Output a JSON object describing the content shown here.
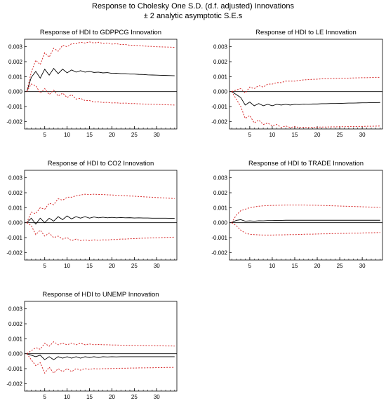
{
  "figure": {
    "title_line1": "Response to Cholesky One S.D. (d.f. adjusted) Innovations",
    "title_line2": "± 2 analytic asymptotic S.E.s"
  },
  "colors": {
    "response": "#000000",
    "band": "#d62728",
    "zero_line": "#000000"
  },
  "chart_data": [
    {
      "type": "line",
      "title": "Response of HDI to GDPPCG Innovation",
      "x": [
        1,
        2,
        3,
        4,
        5,
        6,
        7,
        8,
        9,
        10,
        11,
        12,
        13,
        14,
        15,
        16,
        17,
        18,
        19,
        20,
        21,
        22,
        23,
        24,
        25,
        26,
        27,
        28,
        29,
        30,
        31,
        32,
        33,
        34
      ],
      "xticks": [
        5,
        10,
        15,
        20,
        25,
        30
      ],
      "xlim": [
        0.5,
        34.5
      ],
      "ylim": [
        -0.0025,
        0.0035
      ],
      "yticks": [
        -0.002,
        -0.001,
        0.0,
        0.001,
        0.002,
        0.003
      ],
      "ytick_labels": [
        "-0.002",
        "-0.001",
        "0.000",
        "0.001",
        "0.002",
        "0.003"
      ],
      "series": [
        {
          "role": "response",
          "values": [
            0.0,
            0.00095,
            0.00135,
            0.0009,
            0.0015,
            0.0011,
            0.00155,
            0.0012,
            0.0015,
            0.00125,
            0.00145,
            0.0013,
            0.0014,
            0.0013,
            0.00135,
            0.00128,
            0.0013,
            0.00125,
            0.00127,
            0.00122,
            0.00123,
            0.0012,
            0.0012,
            0.00117,
            0.00117,
            0.00115,
            0.00114,
            0.00112,
            0.00111,
            0.0011,
            0.00109,
            0.00108,
            0.00107,
            0.00106
          ]
        },
        {
          "role": "upper",
          "values": [
            0.0,
            0.0013,
            0.0021,
            0.0018,
            0.0026,
            0.0023,
            0.0029,
            0.0027,
            0.0031,
            0.003,
            0.0032,
            0.0032,
            0.0033,
            0.00325,
            0.00332,
            0.00325,
            0.0033,
            0.00322,
            0.00325,
            0.00318,
            0.0032,
            0.00315,
            0.00315,
            0.0031,
            0.0031,
            0.00308,
            0.00305,
            0.00303,
            0.00302,
            0.003,
            0.00299,
            0.00298,
            0.00297,
            0.00296
          ]
        },
        {
          "role": "lower",
          "values": [
            0.0,
            0.0005,
            0.0004,
            -0.0001,
            0.0002,
            -0.0002,
            0.0001,
            -0.0003,
            -0.0001,
            -0.0004,
            -0.0002,
            -0.0005,
            -0.00045,
            -0.0006,
            -0.0006,
            -0.0007,
            -0.00068,
            -0.00073,
            -0.00072,
            -0.00076,
            -0.00075,
            -0.00078,
            -0.00077,
            -0.0008,
            -0.0008,
            -0.00082,
            -0.00083,
            -0.00084,
            -0.00085,
            -0.00086,
            -0.00087,
            -0.00088,
            -0.00089,
            -0.0009
          ]
        }
      ]
    },
    {
      "type": "line",
      "title": "Response of HDI to LE Innovation",
      "x": [
        1,
        2,
        3,
        4,
        5,
        6,
        7,
        8,
        9,
        10,
        11,
        12,
        13,
        14,
        15,
        16,
        17,
        18,
        19,
        20,
        21,
        22,
        23,
        24,
        25,
        26,
        27,
        28,
        29,
        30,
        31,
        32,
        33,
        34
      ],
      "xticks": [
        5,
        10,
        15,
        20,
        25,
        30
      ],
      "xlim": [
        0.5,
        34.5
      ],
      "ylim": [
        -0.0025,
        0.0035
      ],
      "yticks": [
        -0.002,
        -0.001,
        0.0,
        0.001,
        0.002,
        0.003
      ],
      "ytick_labels": [
        "-0.002",
        "-0.001",
        "0.000",
        "0.001",
        "0.002",
        "0.003"
      ],
      "series": [
        {
          "role": "response",
          "values": [
            0.0,
            -0.0002,
            -0.0004,
            -0.0009,
            -0.0007,
            -0.00095,
            -0.0008,
            -0.00095,
            -0.00085,
            -0.00095,
            -0.00085,
            -0.0009,
            -0.00085,
            -0.0009,
            -0.00085,
            -0.00087,
            -0.00084,
            -0.00085,
            -0.00083,
            -0.00083,
            -0.00081,
            -0.00081,
            -0.0008,
            -0.0008,
            -0.00079,
            -0.00078,
            -0.00077,
            -0.00077,
            -0.00076,
            -0.00075,
            -0.00075,
            -0.00074,
            -0.00074,
            -0.00073
          ]
        },
        {
          "role": "upper",
          "values": [
            0.0,
            0.0001,
            0.0002,
            -0.0001,
            0.0003,
            0.0002,
            0.0004,
            0.0003,
            0.0005,
            0.0005,
            0.0006,
            0.0006,
            0.0007,
            0.0007,
            0.0007,
            0.00075,
            0.00078,
            0.0008,
            0.00082,
            0.00083,
            0.00085,
            0.00086,
            0.00087,
            0.00088,
            0.00089,
            0.0009,
            0.0009,
            0.00091,
            0.00092,
            0.00093,
            0.00093,
            0.00094,
            0.00095,
            0.00095
          ]
        },
        {
          "role": "lower",
          "values": [
            0.0,
            -0.0005,
            -0.001,
            -0.0018,
            -0.0016,
            -0.0021,
            -0.0019,
            -0.0022,
            -0.0021,
            -0.0023,
            -0.0022,
            -0.0024,
            -0.0023,
            -0.0024,
            -0.00235,
            -0.0024,
            -0.00238,
            -0.0024,
            -0.00238,
            -0.00238,
            -0.00237,
            -0.00237,
            -0.00236,
            -0.00236,
            -0.00235,
            -0.00235,
            -0.00234,
            -0.00234,
            -0.00233,
            -0.00233,
            -0.00232,
            -0.00232,
            -0.00231,
            -0.0023
          ]
        }
      ]
    },
    {
      "type": "line",
      "title": "Response of HDI to CO2 Innovation",
      "x": [
        1,
        2,
        3,
        4,
        5,
        6,
        7,
        8,
        9,
        10,
        11,
        12,
        13,
        14,
        15,
        16,
        17,
        18,
        19,
        20,
        21,
        22,
        23,
        24,
        25,
        26,
        27,
        28,
        29,
        30,
        31,
        32,
        33,
        34
      ],
      "xticks": [
        5,
        10,
        15,
        20,
        25,
        30
      ],
      "xlim": [
        0.5,
        34.5
      ],
      "ylim": [
        -0.0025,
        0.0035
      ],
      "yticks": [
        -0.002,
        -0.001,
        0.0,
        0.001,
        0.002,
        0.003
      ],
      "ytick_labels": [
        "-0.002",
        "-0.001",
        "0.000",
        "0.001",
        "0.002",
        "0.003"
      ],
      "series": [
        {
          "role": "response",
          "values": [
            0.0,
            0.0003,
            -0.0001,
            0.0003,
            0.0,
            0.0003,
            0.0001,
            0.0004,
            0.0002,
            0.00045,
            0.00025,
            0.0004,
            0.0003,
            0.0004,
            0.0003,
            0.00038,
            0.00032,
            0.00036,
            0.00032,
            0.00035,
            0.00032,
            0.00034,
            0.00032,
            0.00033,
            0.00031,
            0.00032,
            0.00031,
            0.00031,
            0.0003,
            0.0003,
            0.0003,
            0.0003,
            0.00029,
            0.00029
          ]
        },
        {
          "role": "upper",
          "values": [
            0.0,
            0.0007,
            0.0006,
            0.001,
            0.0009,
            0.0013,
            0.0012,
            0.0016,
            0.0015,
            0.0017,
            0.0017,
            0.0018,
            0.00185,
            0.0019,
            0.00188,
            0.0019,
            0.00188,
            0.00188,
            0.00186,
            0.00185,
            0.00183,
            0.00182,
            0.0018,
            0.00178,
            0.00177,
            0.00175,
            0.00173,
            0.00171,
            0.0017,
            0.00168,
            0.00166,
            0.00165,
            0.00163,
            0.00161
          ]
        },
        {
          "role": "lower",
          "values": [
            0.0,
            -0.0002,
            -0.0008,
            -0.0005,
            -0.0009,
            -0.0007,
            -0.001,
            -0.0009,
            -0.0011,
            -0.001,
            -0.0012,
            -0.0011,
            -0.0012,
            -0.00115,
            -0.0012,
            -0.00115,
            -0.00118,
            -0.00115,
            -0.00116,
            -0.00113,
            -0.00113,
            -0.0011,
            -0.0011,
            -0.00108,
            -0.00107,
            -0.00105,
            -0.00104,
            -0.00103,
            -0.00102,
            -0.00101,
            -0.001,
            -0.00099,
            -0.00098,
            -0.00097
          ]
        }
      ]
    },
    {
      "type": "line",
      "title": "Response of HDI to TRADE Innovation",
      "x": [
        1,
        2,
        3,
        4,
        5,
        6,
        7,
        8,
        9,
        10,
        11,
        12,
        13,
        14,
        15,
        16,
        17,
        18,
        19,
        20,
        21,
        22,
        23,
        24,
        25,
        26,
        27,
        28,
        29,
        30,
        31,
        32,
        33,
        34
      ],
      "xticks": [
        5,
        10,
        15,
        20,
        25,
        30
      ],
      "xlim": [
        0.5,
        34.5
      ],
      "ylim": [
        -0.0025,
        0.0035
      ],
      "yticks": [
        -0.002,
        -0.001,
        0.0,
        0.001,
        0.002,
        0.003
      ],
      "ytick_labels": [
        "-0.002",
        "-0.001",
        "0.000",
        "0.001",
        "0.002",
        "0.003"
      ],
      "series": [
        {
          "role": "response",
          "values": [
            0.0,
            0.00015,
            0.0002,
            0.0001,
            0.00012,
            0.0001,
            0.00013,
            0.00012,
            0.00014,
            0.00014,
            0.00015,
            0.00015,
            0.00016,
            0.00016,
            0.00016,
            0.00016,
            0.00016,
            0.00016,
            0.00016,
            0.00016,
            0.00016,
            0.00016,
            0.00016,
            0.00016,
            0.00016,
            0.00016,
            0.00016,
            0.00016,
            0.00016,
            0.00016,
            0.00016,
            0.00016,
            0.00016,
            0.00016
          ]
        },
        {
          "role": "upper",
          "values": [
            0.0,
            0.0005,
            0.0008,
            0.0009,
            0.001,
            0.00105,
            0.0011,
            0.00112,
            0.00114,
            0.00115,
            0.00116,
            0.00117,
            0.00118,
            0.00118,
            0.00118,
            0.00118,
            0.00118,
            0.00117,
            0.00117,
            0.00116,
            0.00115,
            0.00114,
            0.00113,
            0.00112,
            0.00111,
            0.0011,
            0.00109,
            0.00108,
            0.00107,
            0.00106,
            0.00105,
            0.00104,
            0.00103,
            0.00102
          ]
        },
        {
          "role": "lower",
          "values": [
            0.0,
            -0.0002,
            -0.0005,
            -0.0007,
            -0.00078,
            -0.0008,
            -0.00082,
            -0.00083,
            -0.00083,
            -0.00083,
            -0.00082,
            -0.00082,
            -0.00081,
            -0.0008,
            -0.0008,
            -0.00079,
            -0.00078,
            -0.00077,
            -0.00077,
            -0.00076,
            -0.00075,
            -0.00075,
            -0.00074,
            -0.00073,
            -0.00072,
            -0.00072,
            -0.00071,
            -0.0007,
            -0.0007,
            -0.00069,
            -0.00068,
            -0.00068,
            -0.00067,
            -0.00066
          ]
        }
      ]
    },
    {
      "type": "line",
      "title": "Response of HDI to UNEMP Innovation",
      "x": [
        1,
        2,
        3,
        4,
        5,
        6,
        7,
        8,
        9,
        10,
        11,
        12,
        13,
        14,
        15,
        16,
        17,
        18,
        19,
        20,
        21,
        22,
        23,
        24,
        25,
        26,
        27,
        28,
        29,
        30,
        31,
        32,
        33,
        34
      ],
      "xticks": [
        5,
        10,
        15,
        20,
        25,
        30
      ],
      "xlim": [
        0.5,
        34.5
      ],
      "ylim": [
        -0.0025,
        0.0035
      ],
      "yticks": [
        -0.002,
        -0.001,
        0.0,
        0.001,
        0.002,
        0.003
      ],
      "ytick_labels": [
        "-0.002",
        "-0.001",
        "0.000",
        "0.001",
        "0.002",
        "0.003"
      ],
      "series": [
        {
          "role": "response",
          "values": [
            0.0,
            -0.0001,
            -0.0002,
            -0.0001,
            -0.0004,
            -0.0002,
            -0.0004,
            -0.0002,
            -0.0003,
            -0.0002,
            -0.0003,
            -0.0002,
            -0.0003,
            -0.0002,
            -0.00025,
            -0.0002,
            -0.00025,
            -0.0002,
            -0.00022,
            -0.0002,
            -0.00021,
            -0.0002,
            -0.0002,
            -0.0002,
            -0.0002,
            -0.0002,
            -0.0002,
            -0.0002,
            -0.0002,
            -0.0002,
            -0.0002,
            -0.0002,
            -0.0002,
            -0.0002
          ]
        },
        {
          "role": "upper",
          "values": [
            0.0,
            0.0002,
            0.0004,
            0.0003,
            0.0007,
            0.0005,
            0.0008,
            0.0006,
            0.0007,
            0.0006,
            0.0007,
            0.0006,
            0.0007,
            0.0006,
            0.00065,
            0.0006,
            0.00062,
            0.0006,
            0.0006,
            0.00058,
            0.00058,
            0.00057,
            0.00057,
            0.00056,
            0.00056,
            0.00055,
            0.00055,
            0.00054,
            0.00054,
            0.00053,
            0.00053,
            0.00052,
            0.00052,
            0.00051
          ]
        },
        {
          "role": "lower",
          "values": [
            0.0,
            -0.0004,
            -0.0008,
            -0.0006,
            -0.0013,
            -0.0009,
            -0.0013,
            -0.001,
            -0.0012,
            -0.001,
            -0.0012,
            -0.001,
            -0.0011,
            -0.001,
            -0.00105,
            -0.001,
            -0.00102,
            -0.001,
            -0.001,
            -0.00099,
            -0.00098,
            -0.00097,
            -0.00097,
            -0.00096,
            -0.00096,
            -0.00095,
            -0.00095,
            -0.00094,
            -0.00094,
            -0.00093,
            -0.00093,
            -0.00092,
            -0.00092,
            -0.00091
          ]
        }
      ]
    }
  ]
}
